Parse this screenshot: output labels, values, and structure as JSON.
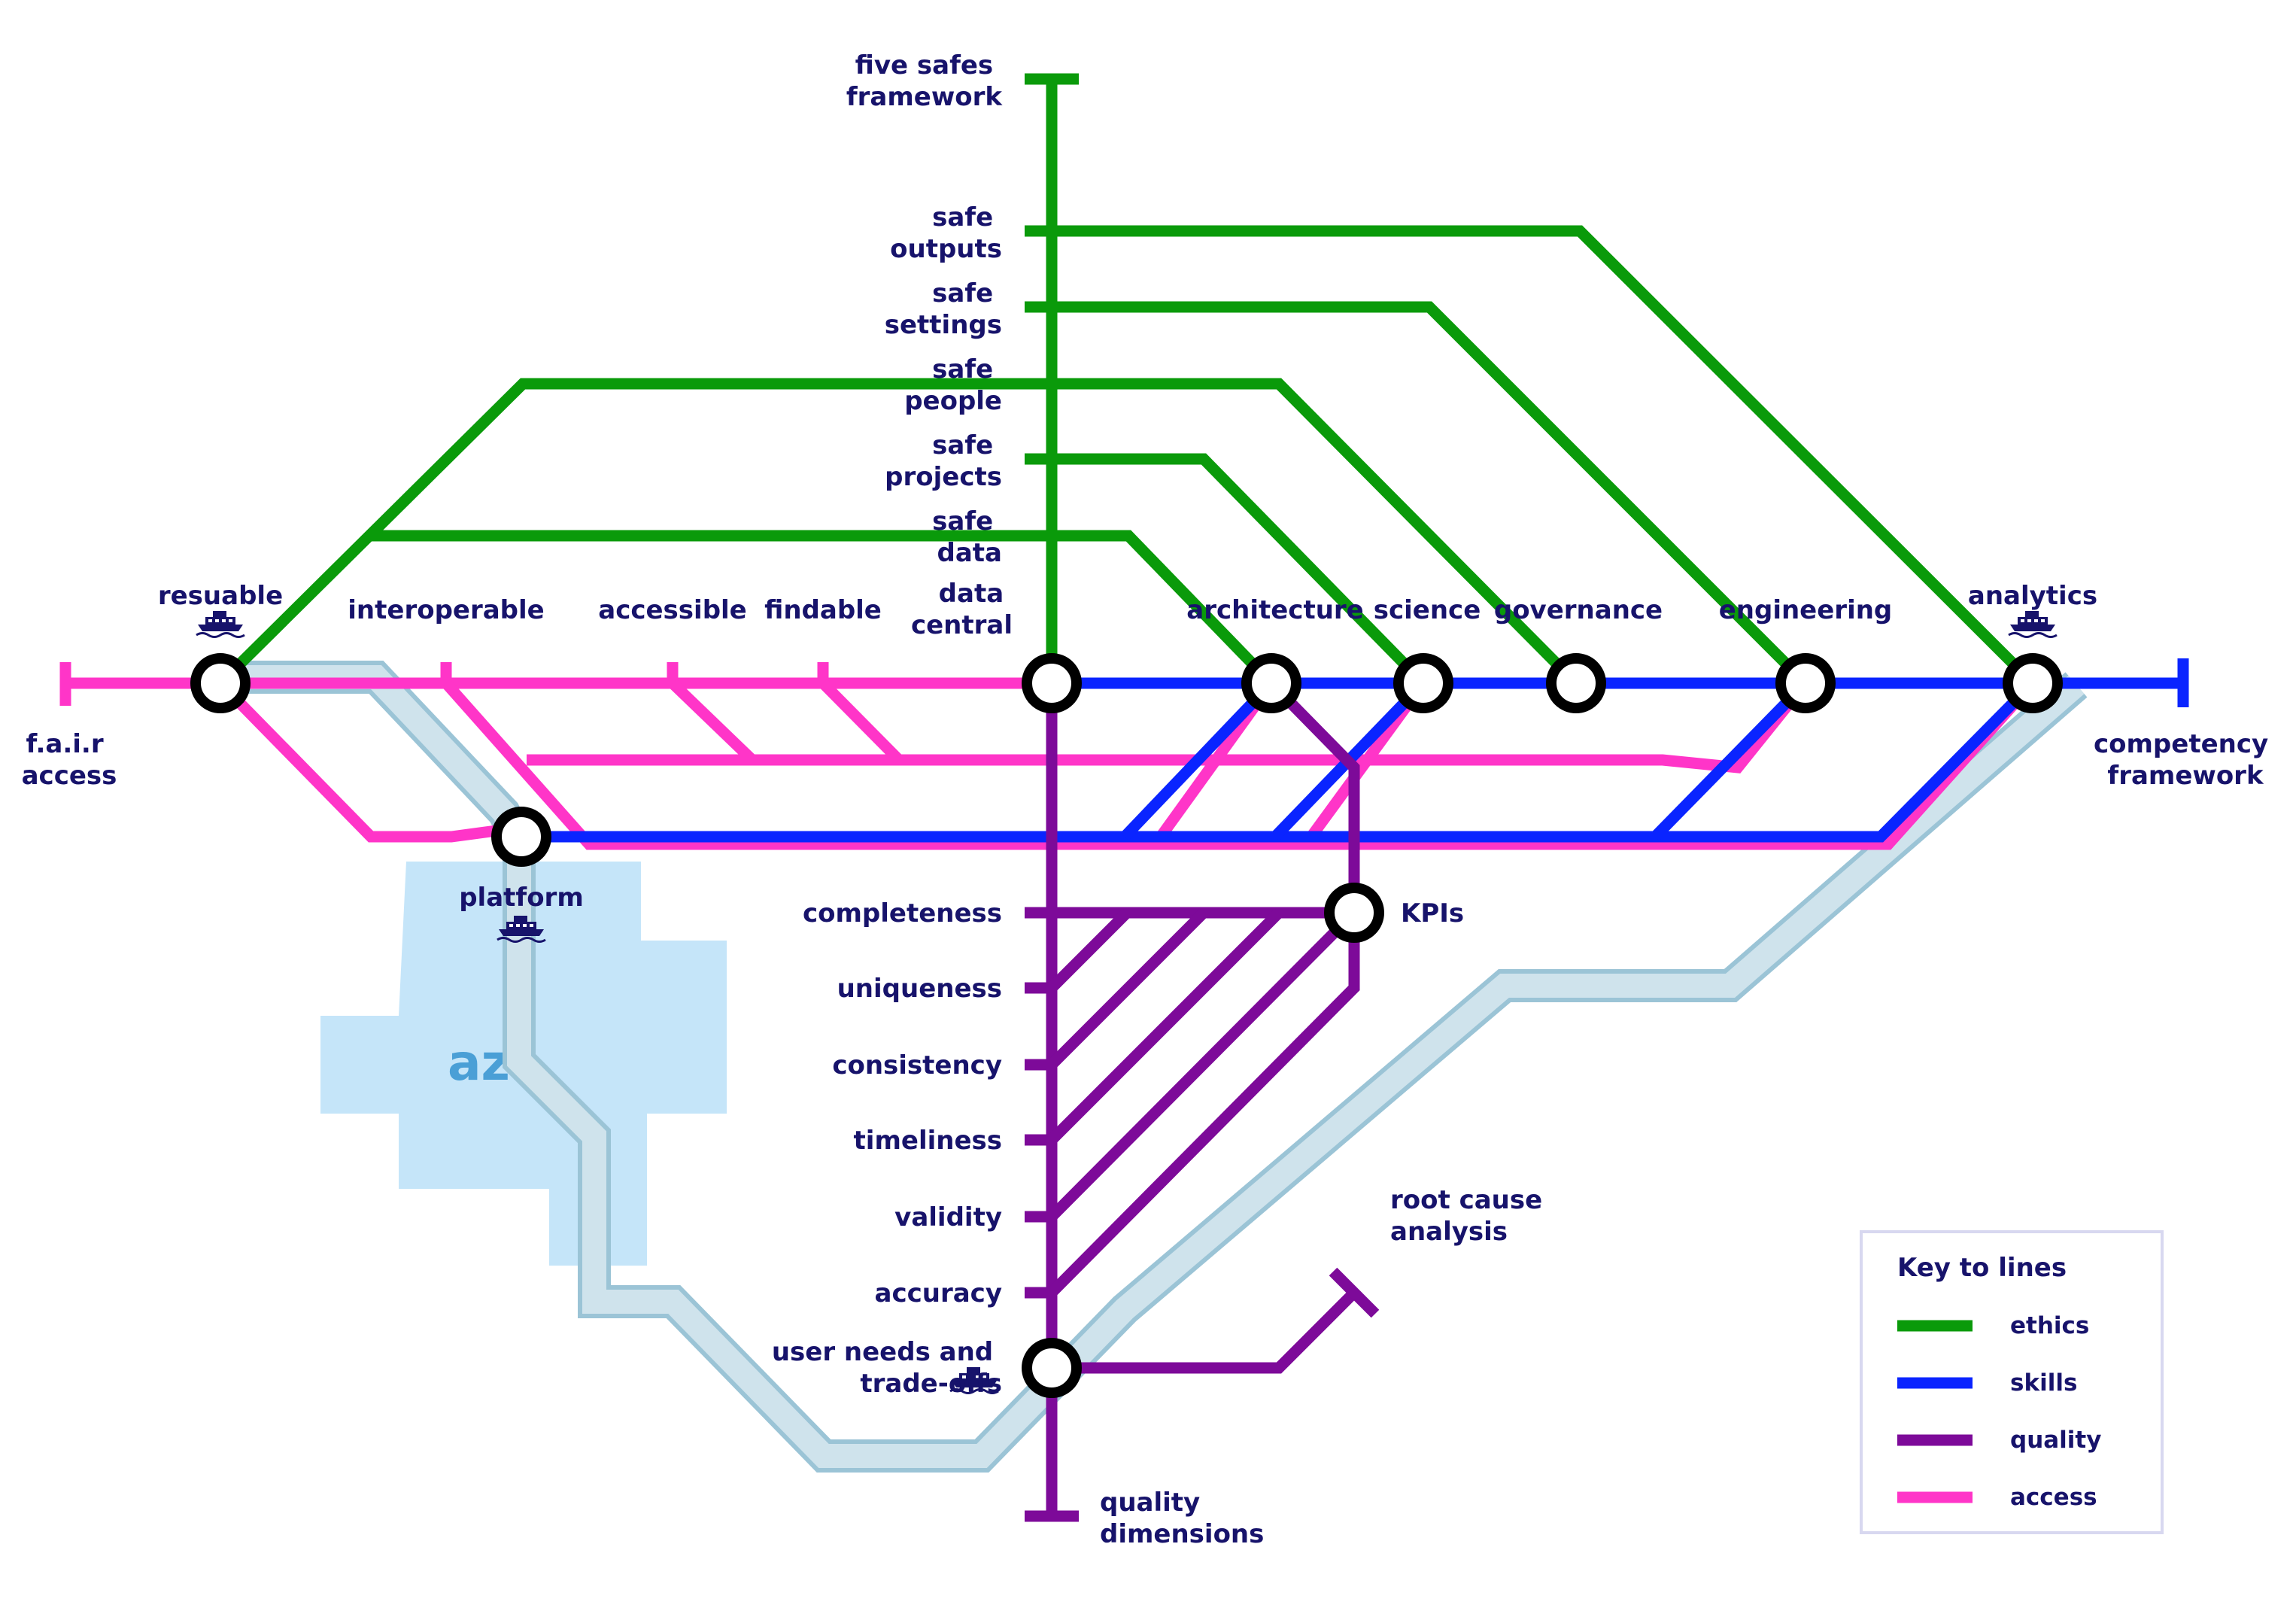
{
  "colors": {
    "ethics": "#0a9a0a",
    "skills": "#0a24ff",
    "quality": "#7d0a99",
    "access": "#ff35c8",
    "river_fill": "#cfe3ec",
    "river_edge": "#9bc4d6",
    "azr_area": "#c5e5f9",
    "azr_text": "#4a9fd6",
    "label": "#17136b",
    "key_border": "#d8d8f0"
  },
  "termini": {
    "five_safes": [
      "five safes",
      "framework"
    ],
    "fair_access": [
      "f.a.i.r",
      "access"
    ],
    "competency": [
      "competency",
      "framework"
    ],
    "quality_dimensions": [
      "quality",
      "dimensions"
    ],
    "root_cause": [
      "root cause",
      "analysis"
    ]
  },
  "stations": {
    "resuable": "resuable",
    "interoperable": "interoperable",
    "accessible": "accessible",
    "findable": "findable",
    "data_central": [
      "data",
      "central"
    ],
    "architecture": "architecture",
    "science": "science",
    "governance": "governance",
    "engineering": "engineering",
    "analytics": "analytics",
    "platform": "platform",
    "kpis": "KPIs",
    "user_needs": [
      "user needs and",
      "trade-offs"
    ]
  },
  "safes": {
    "outputs": [
      "safe",
      "outputs"
    ],
    "settings": [
      "safe",
      "settings"
    ],
    "people": [
      "safe",
      "people"
    ],
    "projects": [
      "safe",
      "projects"
    ],
    "data": [
      "safe",
      "data"
    ]
  },
  "quality_stops": [
    "completeness",
    "uniqueness",
    "consistency",
    "timeliness",
    "validity",
    "accuracy"
  ],
  "area_label": "azr",
  "icons": [
    "ferry-icon"
  ],
  "key": {
    "title": "Key to lines",
    "items": [
      {
        "label": "ethics"
      },
      {
        "label": "skills"
      },
      {
        "label": "quality"
      },
      {
        "label": "access"
      }
    ]
  }
}
